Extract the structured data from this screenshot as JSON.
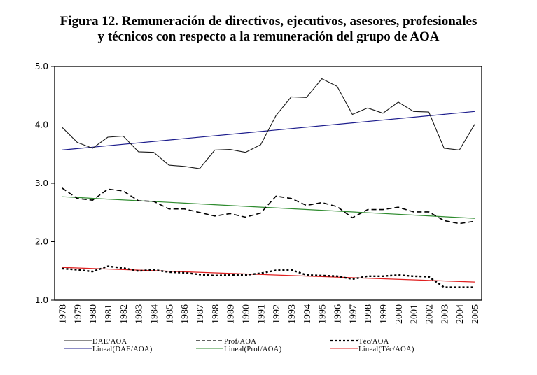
{
  "title_line1": "Figura 12. Remuneración de directivos, ejecutivos, asesores, profesionales",
  "title_line2": "y técnicos con respecto a la remuneración del grupo de AOA",
  "chart_data": {
    "type": "line",
    "title": "Figura 12. Remuneración de directivos, ejecutivos, asesores, profesionales y técnicos con respecto a la remuneración del grupo de AOA",
    "xlabel": "",
    "ylabel": "",
    "ylim": [
      1.0,
      5.0
    ],
    "yticks": [
      "1.0",
      "2.0",
      "3.0",
      "4.0",
      "5.0"
    ],
    "grid": false,
    "legend_position": "bottom",
    "x": [
      "1978",
      "1979",
      "1980",
      "1981",
      "1982",
      "1983",
      "1984",
      "1985",
      "1986",
      "1987",
      "1988",
      "1989",
      "1990",
      "1991",
      "1992",
      "1993",
      "1994",
      "1995",
      "1996",
      "1997",
      "1998",
      "1999",
      "2000",
      "2001",
      "2002",
      "2003",
      "2004",
      "2005"
    ],
    "series": [
      {
        "name": "DAE/AOA",
        "style": "solid",
        "color": "#1a1a1a",
        "values": [
          3.96,
          3.7,
          3.6,
          3.79,
          3.81,
          3.54,
          3.53,
          3.31,
          3.29,
          3.25,
          3.57,
          3.58,
          3.53,
          3.66,
          4.16,
          4.48,
          4.47,
          4.79,
          4.66,
          4.18,
          4.29,
          4.2,
          4.39,
          4.23,
          4.22,
          3.6,
          3.57,
          4.01
        ]
      },
      {
        "name": "Prof/AOA",
        "style": "dashed",
        "color": "#000000",
        "values": [
          2.92,
          2.74,
          2.71,
          2.9,
          2.87,
          2.7,
          2.69,
          2.56,
          2.56,
          2.5,
          2.44,
          2.48,
          2.42,
          2.49,
          2.78,
          2.74,
          2.62,
          2.67,
          2.6,
          2.41,
          2.55,
          2.55,
          2.59,
          2.51,
          2.51,
          2.36,
          2.31,
          2.35
        ]
      },
      {
        "name": "Téc/AOA",
        "style": "dotted",
        "color": "#000000",
        "values": [
          1.54,
          1.52,
          1.49,
          1.58,
          1.55,
          1.5,
          1.52,
          1.48,
          1.47,
          1.44,
          1.42,
          1.43,
          1.43,
          1.46,
          1.51,
          1.52,
          1.43,
          1.42,
          1.41,
          1.36,
          1.41,
          1.41,
          1.43,
          1.41,
          1.4,
          1.22,
          1.22,
          1.22
        ]
      },
      {
        "name": "Lineal(DAE/AOA)",
        "style": "trend",
        "color": "#1c1c8c",
        "start": 3.57,
        "end": 4.23
      },
      {
        "name": "Lineal(Prof/AOA)",
        "style": "trend",
        "color": "#2e8b2e",
        "start": 2.77,
        "end": 2.4
      },
      {
        "name": "Lineal(Téc/AOA)",
        "style": "trend",
        "color": "#e02020",
        "start": 1.56,
        "end": 1.31
      }
    ]
  },
  "legend": [
    {
      "label": "DAE/AOA",
      "style": "solid",
      "color": "#1a1a1a"
    },
    {
      "label": "Prof/AOA",
      "style": "dashed",
      "color": "#000000"
    },
    {
      "label": "Téc/AOA",
      "style": "dotted",
      "color": "#000000"
    },
    {
      "label": "Lineal(DAE/AOA)",
      "style": "solid",
      "color": "#1c1c8c"
    },
    {
      "label": "Lineal(Prof/AOA)",
      "style": "solid",
      "color": "#2e8b2e"
    },
    {
      "label": "Lineal(Téc/AOA)",
      "style": "solid",
      "color": "#e02020"
    }
  ]
}
